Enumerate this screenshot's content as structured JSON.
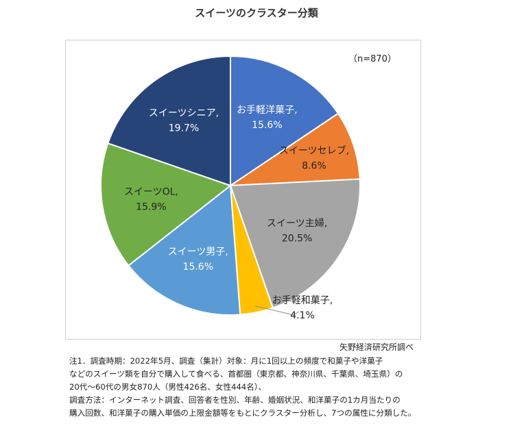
{
  "chart_data": {
    "type": "pie",
    "title": "スイーツのクラスター分類",
    "sample_size": "（n=870）",
    "slices": [
      {
        "name": "お手軽洋菓子,",
        "value": 15.6,
        "value_label": "15.6%",
        "color": "#4472c4",
        "label_color": "#ffffff"
      },
      {
        "name": "スイーツセレブ,",
        "value": 8.6,
        "value_label": "8.6%",
        "color": "#ed7d31",
        "label_color": "#222222"
      },
      {
        "name": "スイーツ主婦,",
        "value": 20.5,
        "value_label": "20.5%",
        "color": "#a5a5a5",
        "label_color": "#222222"
      },
      {
        "name": "お手軽和菓子,",
        "value": 4.1,
        "value_label": "4.1%",
        "color": "#ffc000",
        "label_color": "#222222"
      },
      {
        "name": "スイーツ男子,",
        "value": 15.6,
        "value_label": "15.6%",
        "color": "#5b9bd5",
        "label_color": "#ffffff"
      },
      {
        "name": "スイーツOL,",
        "value": 15.9,
        "value_label": "15.9%",
        "color": "#70ad47",
        "label_color": "#222222"
      },
      {
        "name": "スイーツシニア,",
        "value": 19.7,
        "value_label": "19.7%",
        "color": "#264478",
        "label_color": "#ffffff"
      }
    ]
  },
  "source": "矢野経済研究所調べ",
  "notes": [
    "注1．調査時期：2022年5月、調査（集計）対象：月に1回以上の頻度で和菓子や洋菓子",
    "などのスイーツ類を自分で購入して食べる、首都圏（東京都、神奈川県、千葉県、埼玉県）の",
    "20代～60代の男女870人（男性426名、女性444名）、",
    "調査方法：インターネット調査、回答者を性別、年齢、婚姻状況、和洋菓子の1カ月当たりの",
    "購入回数、和洋菓子の購入単価の上限金額等をもとにクラスター分析し、7つの属性に分類した。"
  ]
}
